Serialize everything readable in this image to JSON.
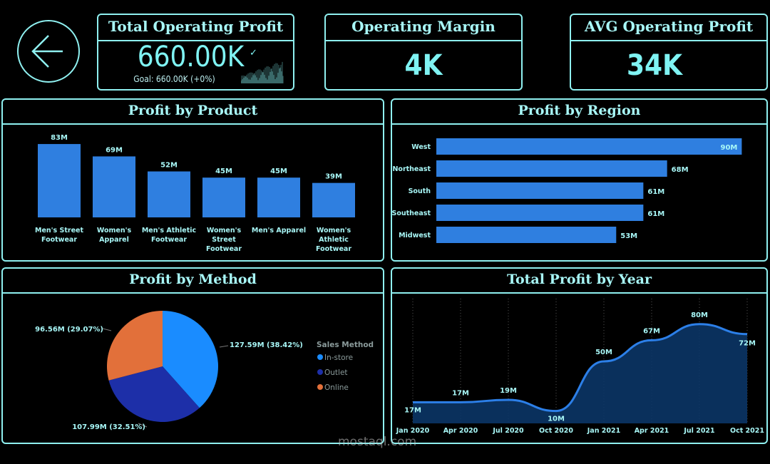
{
  "nav": {
    "back_icon": "arrow-left-icon"
  },
  "kpis": [
    {
      "title": "Total Operating Profit",
      "value": "660.00K",
      "goal": "Goal: 660.00K (+0%)",
      "status_icon": "check-icon"
    },
    {
      "title": "Operating Margin",
      "value": "4K"
    },
    {
      "title": "AVG Operating Profit",
      "value": "34K"
    }
  ],
  "colors": {
    "accent": "#8ff0f0",
    "bar": "#2f7fe0",
    "instore": "#1a8cff",
    "outlet": "#1d2fa8",
    "online": "#e2703a",
    "line": "#2c7fe8",
    "area": "#0b3566"
  },
  "watermark": "mostaql.com",
  "chart_data": [
    {
      "type": "bar",
      "title": "Profit by Product",
      "categories": [
        "Men's Street Footwear",
        "Women's Apparel",
        "Men's Athletic Footwear",
        "Women's Street Footwear",
        "Men's Apparel",
        "Women's Athletic Footwear"
      ],
      "values": [
        83,
        69,
        52,
        45,
        45,
        39
      ],
      "labels": [
        "83M",
        "69M",
        "52M",
        "45M",
        "45M",
        "39M"
      ]
    },
    {
      "type": "bar",
      "orientation": "horizontal",
      "title": "Profit by Region",
      "categories": [
        "West",
        "Northeast",
        "South",
        "Southeast",
        "Midwest"
      ],
      "values": [
        90,
        68,
        61,
        61,
        53
      ],
      "labels": [
        "90M",
        "68M",
        "61M",
        "61M",
        "53M"
      ]
    },
    {
      "type": "pie",
      "title": "Profit by Method",
      "legend_title": "Sales Method",
      "legend_placement": "right",
      "slices": [
        {
          "name": "In-store",
          "value": 127.59,
          "label": "127.59M (38.42%)",
          "percent": 38.42
        },
        {
          "name": "Outlet",
          "value": 107.99,
          "label": "107.99M (32.51%)",
          "percent": 32.51
        },
        {
          "name": "Online",
          "value": 96.56,
          "label": "96.56M (29.07%)",
          "percent": 29.07
        }
      ]
    },
    {
      "type": "area",
      "title": "Total Profit by Year",
      "x": [
        "Jan 2020",
        "Apr 2020",
        "Jul 2020",
        "Oct 2020",
        "Jan 2021",
        "Apr 2021",
        "Jul 2021",
        "Oct 2021"
      ],
      "values": [
        17,
        17,
        19,
        10,
        50,
        67,
        80,
        72
      ],
      "labels": [
        "17M",
        "17M",
        "19M",
        "10M",
        "50M",
        "67M",
        "80M",
        "72M"
      ],
      "grid": "vertical dotted"
    }
  ]
}
